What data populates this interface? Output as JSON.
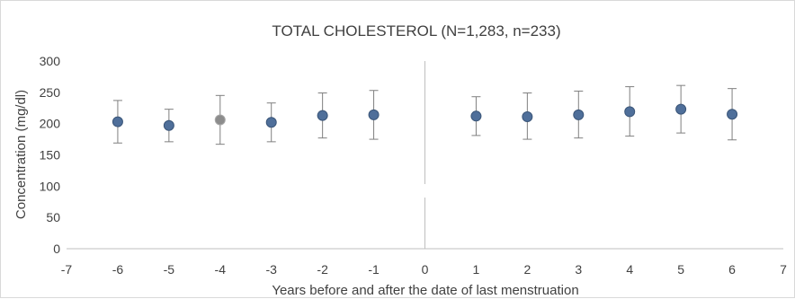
{
  "chart_data": {
    "type": "scatter",
    "title": "TOTAL CHOLESTEROL (N=1,283, n=233)",
    "xlabel": "Years before and after the date of last menstruation",
    "ylabel": "Concentration (mg/dl)",
    "xlim": [
      -7,
      7
    ],
    "ylim": [
      0,
      300
    ],
    "x_ticks": [
      -7,
      -6,
      -5,
      -4,
      -3,
      -2,
      -1,
      0,
      1,
      2,
      3,
      4,
      5,
      6,
      7
    ],
    "y_ticks": [
      0,
      50,
      100,
      150,
      200,
      250,
      300
    ],
    "grid": false,
    "points": [
      {
        "x": -6,
        "y": 203,
        "lower": 169,
        "upper": 237
      },
      {
        "x": -5,
        "y": 197,
        "lower": 171,
        "upper": 223
      },
      {
        "x": -4,
        "y": 206,
        "lower": 167,
        "upper": 245
      },
      {
        "x": -3,
        "y": 202,
        "lower": 171,
        "upper": 233
      },
      {
        "x": -2,
        "y": 213,
        "lower": 177,
        "upper": 249
      },
      {
        "x": -1,
        "y": 214,
        "lower": 175,
        "upper": 253
      },
      {
        "x": 1,
        "y": 212,
        "lower": 181,
        "upper": 243
      },
      {
        "x": 2,
        "y": 211,
        "lower": 175,
        "upper": 249
      },
      {
        "x": 3,
        "y": 214,
        "lower": 177,
        "upper": 252
      },
      {
        "x": 4,
        "y": 219,
        "lower": 180,
        "upper": 259
      },
      {
        "x": 5,
        "y": 223,
        "lower": 185,
        "upper": 261
      },
      {
        "x": 6,
        "y": 215,
        "lower": 174,
        "upper": 256
      }
    ],
    "reference_line_x": 0,
    "colors": {
      "marker": "#4f6f9a",
      "marker_highlight": "#8c8c8c",
      "error_bar": "#7f7f7f",
      "axis": "#bfbfbf",
      "text": "#404040"
    },
    "highlight_x": -4
  }
}
